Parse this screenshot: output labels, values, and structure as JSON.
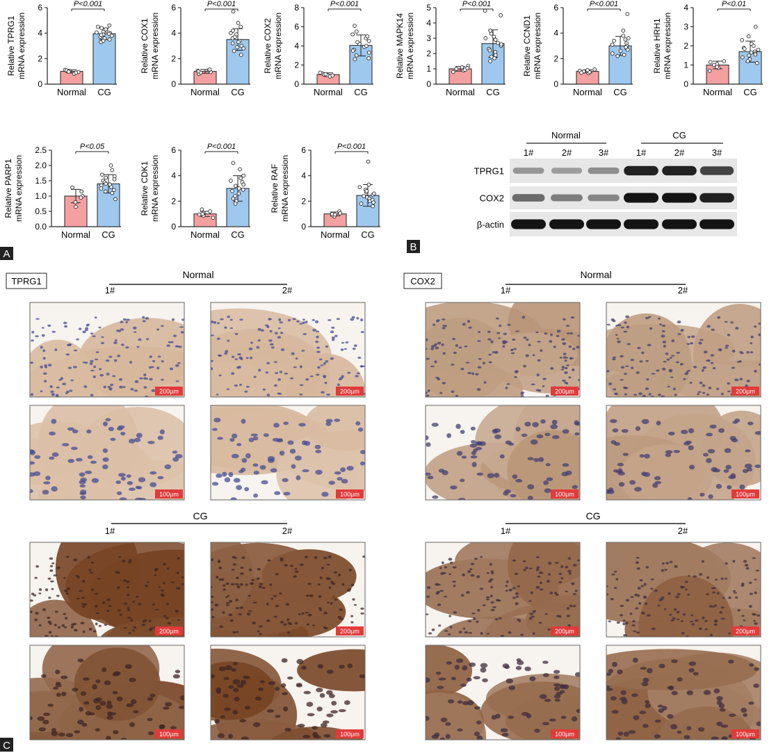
{
  "chart_data": [
    {
      "type": "bar",
      "ylabel": [
        "Relative TPRG1",
        "mRNA expression"
      ],
      "categories": [
        "Normal",
        "CG"
      ],
      "values": [
        1.0,
        3.95
      ],
      "errors": [
        0.12,
        0.45
      ],
      "ylim": [
        0,
        6
      ],
      "ticks": [
        0,
        2,
        4,
        6
      ],
      "pvalue": "P<0.001",
      "points": [
        [
          0.82,
          0.95,
          1.05,
          1.12,
          1.0,
          0.9,
          1.08,
          0.98
        ],
        [
          4.6,
          4.4,
          4.2,
          4.0,
          3.8,
          3.6,
          3.3,
          4.1,
          3.9,
          4.3,
          3.7,
          3.5,
          4.5,
          3.95,
          4.05,
          3.85,
          3.4
        ]
      ]
    },
    {
      "type": "bar",
      "ylabel": [
        "Relative COX1",
        "mRNA expression"
      ],
      "categories": [
        "Normal",
        "CG"
      ],
      "values": [
        1.0,
        3.5
      ],
      "errors": [
        0.15,
        0.85
      ],
      "ylim": [
        0,
        6
      ],
      "ticks": [
        0,
        2,
        4,
        6
      ],
      "pvalue": "P<0.001",
      "points": [
        [
          0.8,
          0.95,
          1.1,
          1.05,
          0.9,
          1.0,
          1.15
        ],
        [
          5.7,
          4.8,
          4.5,
          4.2,
          3.9,
          3.6,
          3.4,
          3.2,
          3.0,
          2.8,
          2.6,
          2.3,
          3.7,
          4.0,
          3.3,
          2.9
        ]
      ]
    },
    {
      "type": "bar",
      "ylabel": [
        "Relative COX2",
        "mRNA expression"
      ],
      "categories": [
        "Normal",
        "CG"
      ],
      "values": [
        1.0,
        4.05
      ],
      "errors": [
        0.18,
        1.1
      ],
      "ylim": [
        0,
        8
      ],
      "ticks": [
        0,
        2,
        4,
        6,
        8
      ],
      "pvalue": "P<0.001",
      "points": [
        [
          0.8,
          0.9,
          1.1,
          1.2,
          1.0,
          0.95,
          1.05
        ],
        [
          6.1,
          5.5,
          5.2,
          4.8,
          4.5,
          4.2,
          3.9,
          3.6,
          3.3,
          3.0,
          2.7,
          2.6,
          4.0,
          3.5,
          4.4,
          5.0
        ]
      ]
    },
    {
      "type": "bar",
      "ylabel": [
        "Relative MAPK14",
        "mRNA expression"
      ],
      "categories": [
        "Normal",
        "CG"
      ],
      "values": [
        1.0,
        2.65
      ],
      "errors": [
        0.15,
        0.9
      ],
      "ylim": [
        0,
        5
      ],
      "ticks": [
        0,
        1,
        2,
        3,
        4,
        5
      ],
      "pvalue": "P<0.001",
      "points": [
        [
          0.8,
          0.9,
          1.1,
          1.2,
          1.0,
          0.95,
          1.05
        ],
        [
          4.8,
          4.5,
          3.5,
          3.3,
          3.1,
          2.9,
          2.7,
          2.5,
          2.3,
          2.1,
          1.9,
          1.7,
          1.5,
          2.6,
          3.0,
          2.2,
          1.8
        ]
      ]
    },
    {
      "type": "bar",
      "ylabel": [
        "Relative CCND1",
        "mRNA expression"
      ],
      "categories": [
        "Normal",
        "CG"
      ],
      "values": [
        1.0,
        3.0
      ],
      "errors": [
        0.12,
        0.75
      ],
      "ylim": [
        0,
        6
      ],
      "ticks": [
        0,
        2,
        4,
        6
      ],
      "pvalue": "P<0.001",
      "points": [
        [
          0.85,
          0.95,
          1.05,
          1.15,
          1.0,
          0.9,
          1.1
        ],
        [
          5.5,
          4.2,
          3.8,
          3.6,
          3.4,
          3.2,
          3.0,
          2.8,
          2.6,
          2.4,
          2.2,
          3.1,
          2.9,
          2.7,
          3.5,
          2.3
        ]
      ]
    },
    {
      "type": "bar",
      "ylabel": [
        "Relative HRH1",
        "mRNA expression"
      ],
      "categories": [
        "Normal",
        "CG"
      ],
      "values": [
        1.0,
        1.7
      ],
      "errors": [
        0.2,
        0.55
      ],
      "ylim": [
        0,
        4
      ],
      "ticks": [
        0,
        1,
        2,
        3,
        4
      ],
      "pvalue": "P<0.01",
      "points": [
        [
          0.7,
          0.85,
          1.05,
          1.2,
          1.0,
          0.9,
          1.15
        ],
        [
          3.0,
          2.5,
          2.3,
          2.1,
          2.0,
          1.9,
          1.8,
          1.7,
          1.6,
          1.5,
          1.4,
          1.3,
          1.2,
          1.1,
          1.65,
          1.85,
          1.55
        ]
      ]
    },
    {
      "type": "bar",
      "ylabel": [
        "Relative PARP1",
        "mRNA expression"
      ],
      "categories": [
        "Normal",
        "CG"
      ],
      "values": [
        1.0,
        1.4
      ],
      "errors": [
        0.22,
        0.3
      ],
      "ylim": [
        0,
        2.5
      ],
      "ticks": [
        0,
        0.5,
        1.0,
        1.5,
        2.0,
        2.5
      ],
      "tick_labels": [
        "0.0",
        "0.5",
        "1.0",
        "1.5",
        "2.0",
        "2.5"
      ],
      "pvalue": "P<0.05",
      "points": [
        [
          0.65,
          0.8,
          1.0,
          1.15,
          1.28,
          0.95
        ],
        [
          2.0,
          1.85,
          1.7,
          1.6,
          1.5,
          1.45,
          1.4,
          1.35,
          1.3,
          1.25,
          1.2,
          1.1,
          0.9,
          1.55,
          1.65,
          1.15,
          1.38
        ]
      ]
    },
    {
      "type": "bar",
      "ylabel": [
        "Relative CDK1",
        "mRNA expression"
      ],
      "categories": [
        "Normal",
        "CG"
      ],
      "values": [
        1.0,
        3.0
      ],
      "errors": [
        0.2,
        1.0
      ],
      "ylim": [
        0,
        6
      ],
      "ticks": [
        0,
        2,
        4,
        6
      ],
      "pvalue": "P<0.001",
      "points": [
        [
          0.7,
          0.85,
          1.0,
          1.2,
          1.35,
          0.95
        ],
        [
          5.0,
          4.5,
          4.0,
          3.8,
          3.5,
          3.3,
          3.0,
          2.8,
          2.6,
          2.4,
          2.2,
          2.0,
          1.8,
          3.2,
          2.9,
          3.6
        ]
      ]
    },
    {
      "type": "bar",
      "ylabel": [
        "Relative RAF",
        "mRNA expression"
      ],
      "categories": [
        "Normal",
        "CG"
      ],
      "values": [
        1.0,
        2.45
      ],
      "errors": [
        0.15,
        0.85
      ],
      "ylim": [
        0,
        6
      ],
      "ticks": [
        0,
        2,
        4,
        6
      ],
      "pvalue": "P<0.001",
      "points": [
        [
          0.8,
          0.9,
          1.1,
          1.2,
          1.0,
          0.95,
          1.05
        ],
        [
          5.1,
          3.3,
          3.1,
          2.9,
          2.7,
          2.5,
          2.4,
          2.3,
          2.2,
          2.0,
          1.8,
          1.6,
          2.6,
          2.1,
          1.9,
          2.8
        ]
      ]
    }
  ],
  "panel_a": {
    "label": "A"
  },
  "panel_b": {
    "label": "B",
    "group_labels": [
      "Normal",
      "CG"
    ],
    "lane_labels": [
      "1#",
      "2#",
      "3#",
      "1#",
      "2#",
      "3#"
    ],
    "rows": [
      {
        "name": "TPRG1",
        "intensity": [
          0.35,
          0.3,
          0.4,
          0.95,
          0.95,
          0.8
        ]
      },
      {
        "name": "COX2",
        "intensity": [
          0.6,
          0.5,
          0.45,
          1.0,
          1.0,
          0.95
        ]
      },
      {
        "name": "β-actin",
        "intensity": [
          1.0,
          1.0,
          1.0,
          1.0,
          1.0,
          1.0
        ]
      }
    ]
  },
  "panel_c": {
    "label": "C",
    "stains": [
      {
        "name": "TPRG1",
        "groups": [
          {
            "name": "Normal",
            "samples": [
              "1#",
              "2#"
            ],
            "stain_level": 0.1,
            "scale_bars": [
              "200μm",
              "100μm"
            ]
          },
          {
            "name": "CG",
            "samples": [
              "1#",
              "2#"
            ],
            "stain_level": 0.95,
            "scale_bars": [
              "200μm",
              "100μm"
            ]
          }
        ]
      },
      {
        "name": "COX2",
        "groups": [
          {
            "name": "Normal",
            "samples": [
              "1#",
              "2#"
            ],
            "stain_level": 0.35,
            "scale_bars": [
              "200μm",
              "100μm"
            ]
          },
          {
            "name": "CG",
            "samples": [
              "1#",
              "2#"
            ],
            "stain_level": 0.75,
            "scale_bars": [
              "200μm",
              "100μm"
            ]
          }
        ]
      }
    ]
  },
  "colors": {
    "normal_bar": "#f4a0a0",
    "cg_bar": "#9fc8ee",
    "bar_stroke": "#222222",
    "scale_bar": "#e23a3a"
  }
}
